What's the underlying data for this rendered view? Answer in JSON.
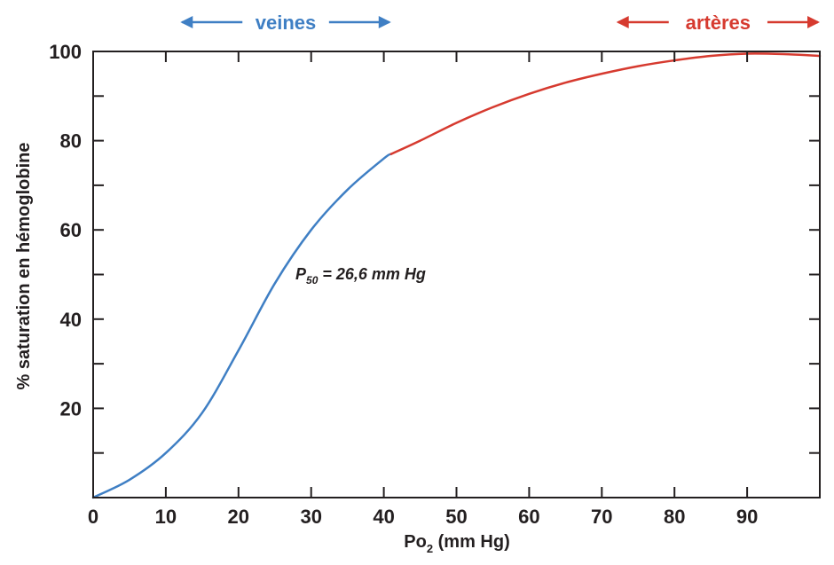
{
  "chart_data": {
    "type": "line",
    "xlabel_main": "Po",
    "xlabel_sub": "2",
    "xlabel_rest": " (mm Hg)",
    "ylabel": "% saturation en hémoglobine",
    "xlim": [
      0,
      100
    ],
    "ylim": [
      0,
      100
    ],
    "x_ticks": [
      "0",
      "10",
      "20",
      "30",
      "40",
      "50",
      "60",
      "70",
      "80",
      "90"
    ],
    "y_ticks": [
      "20",
      "40",
      "60",
      "80",
      "100"
    ],
    "grid": false,
    "series": [
      {
        "name": "veines",
        "color": "#3f7fc4",
        "x": [
          0,
          5,
          10,
          15,
          20,
          25,
          30,
          35,
          40,
          41
        ],
        "y": [
          0,
          4,
          10,
          19,
          33,
          48,
          60,
          69,
          76,
          77
        ]
      },
      {
        "name": "artères",
        "color": "#d63a2f",
        "x": [
          41,
          45,
          50,
          55,
          60,
          65,
          70,
          75,
          80,
          85,
          90,
          95,
          100
        ],
        "y": [
          77,
          80,
          84,
          87.5,
          90.5,
          93,
          95,
          96.7,
          98,
          99,
          99.5,
          99.4,
          99
        ]
      }
    ],
    "annotation": {
      "main": "P",
      "sub": "50",
      "rest": " = 26,6 mm Hg",
      "x": 28,
      "y": 50
    },
    "ranges": [
      {
        "label": "veines",
        "color": "#3f7fc4",
        "from": 12,
        "to": 41
      },
      {
        "label": "artères",
        "color": "#d63a2f",
        "from": 72,
        "to": 100
      }
    ]
  }
}
